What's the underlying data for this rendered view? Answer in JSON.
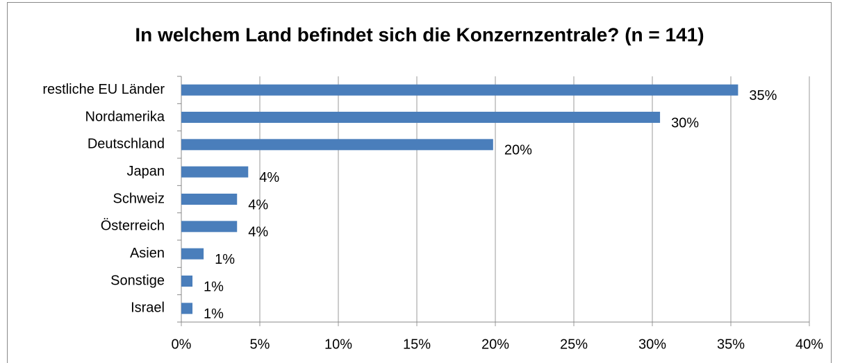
{
  "chart_data": {
    "type": "bar",
    "orientation": "horizontal",
    "title": "In welchem Land befindet sich die Konzernzentrale? (n = 141)",
    "categories": [
      "restliche EU Länder",
      "Nordamerika",
      "Deutschland",
      "Japan",
      "Schweiz",
      "Österreich",
      "Asien",
      "Sonstige",
      "Israel"
    ],
    "values": [
      35.46,
      30.49,
      19.86,
      4.26,
      3.55,
      3.55,
      1.42,
      0.71,
      0.71
    ],
    "value_labels": [
      "35%",
      "30%",
      "20%",
      "4%",
      "4%",
      "4%",
      "1%",
      "1%",
      "1%"
    ],
    "color": "#4a7ebb",
    "xlim": [
      0,
      40
    ],
    "xticks": [
      {
        "value": 0,
        "label": "0%"
      },
      {
        "value": 5,
        "label": "5%"
      },
      {
        "value": 10,
        "label": "10%"
      },
      {
        "value": 15,
        "label": "15%"
      },
      {
        "value": 20,
        "label": "20%"
      },
      {
        "value": 25,
        "label": "25%"
      },
      {
        "value": 30,
        "label": "30%"
      },
      {
        "value": 35,
        "label": "35%"
      },
      {
        "value": 40,
        "label": "40%"
      }
    ],
    "grid": true
  }
}
